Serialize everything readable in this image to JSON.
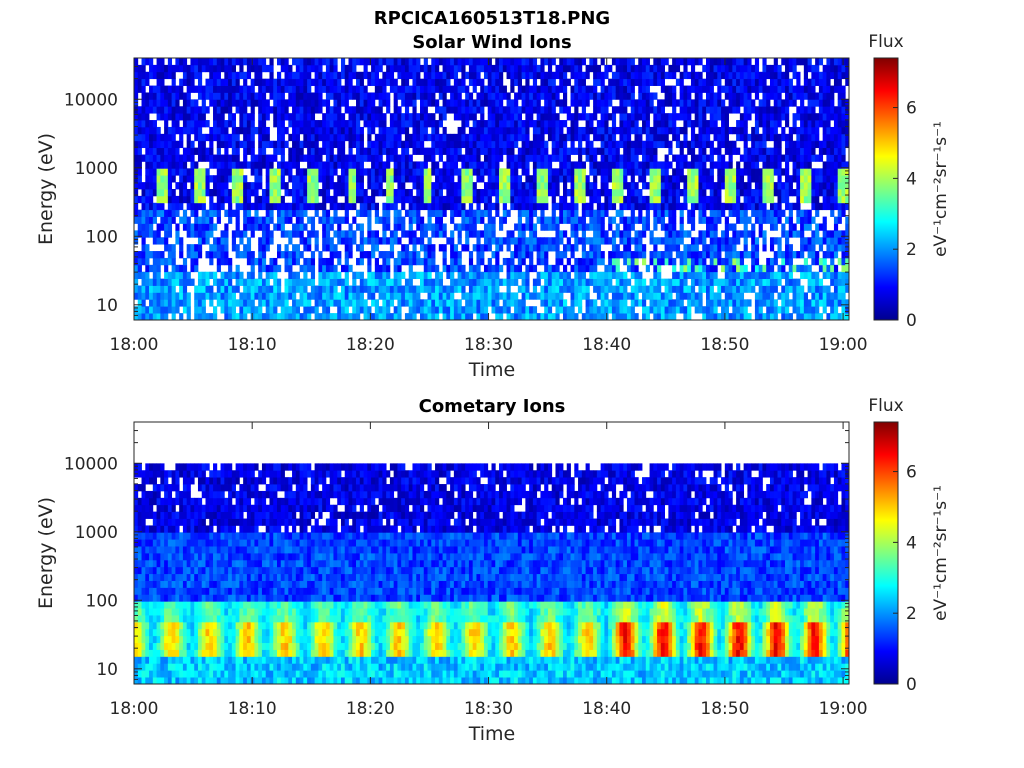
{
  "figure": {
    "title": "RPCICA160513T18.PNG"
  },
  "chart_data": [
    {
      "type": "heatmap",
      "title": "Solar Wind Ions",
      "xlabel": "Time",
      "ylabel": "Energy (eV)",
      "x_ticks": [
        "18:00",
        "18:10",
        "18:20",
        "18:30",
        "18:40",
        "18:50",
        "19:00"
      ],
      "x_range_minutes": [
        0,
        60.5
      ],
      "y_scale": "log",
      "y_ticks": [
        10,
        100,
        1000,
        10000
      ],
      "y_tick_labels": [
        "10",
        "100",
        "1000",
        "10000"
      ],
      "y_range": [
        6,
        40000
      ],
      "colorbar": {
        "label": "Flux",
        "unit": "eV⁻¹cm⁻²sr⁻¹s⁻¹",
        "range": [
          0,
          7.4
        ],
        "ticks": [
          0,
          2,
          4,
          6
        ],
        "tick_labels": [
          "0",
          "2",
          "4",
          "6"
        ],
        "colormap": "jet"
      },
      "features": {
        "beam_energy_eV": [
          300,
          900
        ],
        "beam_flux": 4,
        "beam_period_min": 3.2
      }
    },
    {
      "type": "heatmap",
      "title": "Cometary Ions",
      "xlabel": "Time",
      "ylabel": "Energy (eV)",
      "x_ticks": [
        "18:00",
        "18:10",
        "18:20",
        "18:30",
        "18:40",
        "18:50",
        "19:00"
      ],
      "x_range_minutes": [
        0,
        60.5
      ],
      "y_scale": "log",
      "y_ticks": [
        10,
        100,
        1000,
        10000
      ],
      "y_tick_labels": [
        "10",
        "100",
        "1000",
        "10000"
      ],
      "y_range": [
        6,
        40000
      ],
      "colorbar": {
        "label": "Flux",
        "unit": "eV⁻¹cm⁻²sr⁻¹s⁻¹",
        "range": [
          0,
          7.4
        ],
        "ticks": [
          0,
          2,
          4,
          6
        ],
        "tick_labels": [
          "0",
          "2",
          "4",
          "6"
        ],
        "colormap": "jet"
      },
      "features": {
        "peak_energy_eV": [
          15,
          50
        ],
        "peak_flux_early": 5,
        "peak_flux_late": 6.5,
        "upper_cutoff_eV": 11000
      }
    }
  ]
}
